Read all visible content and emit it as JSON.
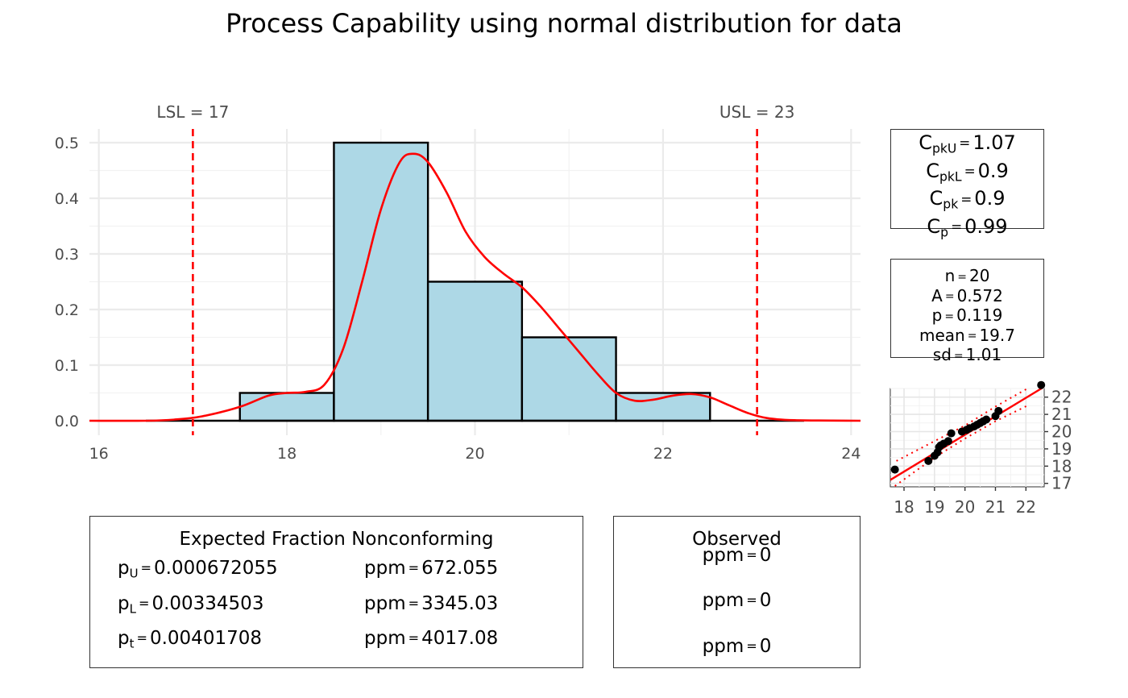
{
  "title": "Process Capability using normal distribution for data",
  "chart_data": [
    {
      "type": "bar",
      "subtype": "histogram-with-density",
      "x_ticks": [
        16,
        18,
        20,
        22,
        24
      ],
      "xlim": [
        15.9,
        24.1
      ],
      "y_ticks": [
        "0.0",
        "0.1",
        "0.2",
        "0.3",
        "0.4",
        "0.5"
      ],
      "ylim": [
        0,
        0.52
      ],
      "bins": [
        {
          "x0": 17.5,
          "x1": 18.5,
          "value": 0.05
        },
        {
          "x0": 18.5,
          "x1": 19.5,
          "value": 0.5
        },
        {
          "x0": 19.5,
          "x1": 20.5,
          "value": 0.25
        },
        {
          "x0": 20.5,
          "x1": 21.5,
          "value": 0.15
        },
        {
          "x0": 21.5,
          "x1": 22.5,
          "value": 0.05
        }
      ],
      "bar_fill": "#add8e6",
      "density_color": "#ff0000",
      "density_curve": [
        [
          15.9,
          0.0
        ],
        [
          16.5,
          0.0
        ],
        [
          16.8,
          0.002
        ],
        [
          17.1,
          0.008
        ],
        [
          17.5,
          0.025
        ],
        [
          17.8,
          0.045
        ],
        [
          18.0,
          0.05
        ],
        [
          18.2,
          0.052
        ],
        [
          18.4,
          0.065
        ],
        [
          18.6,
          0.13
        ],
        [
          18.8,
          0.25
        ],
        [
          19.0,
          0.38
        ],
        [
          19.2,
          0.465
        ],
        [
          19.35,
          0.48
        ],
        [
          19.5,
          0.465
        ],
        [
          19.7,
          0.41
        ],
        [
          19.9,
          0.34
        ],
        [
          20.1,
          0.295
        ],
        [
          20.3,
          0.265
        ],
        [
          20.5,
          0.24
        ],
        [
          20.7,
          0.205
        ],
        [
          20.9,
          0.165
        ],
        [
          21.1,
          0.125
        ],
        [
          21.3,
          0.085
        ],
        [
          21.5,
          0.05
        ],
        [
          21.7,
          0.036
        ],
        [
          21.9,
          0.038
        ],
        [
          22.1,
          0.045
        ],
        [
          22.3,
          0.048
        ],
        [
          22.5,
          0.042
        ],
        [
          22.7,
          0.028
        ],
        [
          22.9,
          0.014
        ],
        [
          23.1,
          0.005
        ],
        [
          23.4,
          0.001
        ],
        [
          24.1,
          0.0
        ]
      ],
      "spec_limits": [
        {
          "label": "LSL = 17",
          "value": 17
        },
        {
          "label": "USL = 23",
          "value": 23
        }
      ],
      "spec_color": "#ff0000"
    },
    {
      "type": "scatter",
      "subtype": "qq-plot",
      "x_ticks": [
        "18",
        "19",
        "20",
        "21",
        "22"
      ],
      "y_ticks": [
        "17",
        "18",
        "19",
        "20",
        "21",
        "22"
      ],
      "xlim": [
        17.55,
        22.6
      ],
      "ylim": [
        16.8,
        22.5
      ],
      "points": [
        [
          17.7,
          17.8
        ],
        [
          18.8,
          18.3
        ],
        [
          19.0,
          18.6
        ],
        [
          19.1,
          18.8
        ],
        [
          19.15,
          19.1
        ],
        [
          19.2,
          19.2
        ],
        [
          19.3,
          19.3
        ],
        [
          19.45,
          19.45
        ],
        [
          19.55,
          19.9
        ],
        [
          19.9,
          20.0
        ],
        [
          20.05,
          20.1
        ],
        [
          20.15,
          20.2
        ],
        [
          20.3,
          20.3
        ],
        [
          20.4,
          20.4
        ],
        [
          20.5,
          20.5
        ],
        [
          20.6,
          20.6
        ],
        [
          20.7,
          20.7
        ],
        [
          21.0,
          20.9
        ],
        [
          21.1,
          21.2
        ],
        [
          22.5,
          22.7
        ]
      ],
      "fit_line": [
        [
          17.55,
          17.2
        ],
        [
          22.6,
          22.6
        ]
      ],
      "band_lower": [
        [
          17.7,
          16.85
        ],
        [
          19.0,
          18.5
        ],
        [
          20.0,
          19.6
        ],
        [
          21.0,
          20.6
        ],
        [
          22.1,
          21.55
        ]
      ],
      "band_upper": [
        [
          17.75,
          18.3
        ],
        [
          19.0,
          19.45
        ],
        [
          20.0,
          20.35
        ],
        [
          21.0,
          21.45
        ],
        [
          22.1,
          22.55
        ]
      ]
    }
  ],
  "capability": {
    "cpku": "1.07",
    "cpkl": "0.9",
    "cpk": "0.9",
    "cp": "0.99"
  },
  "stats": {
    "n": "20",
    "A": "0.572",
    "p": "0.119",
    "mean": "19.7",
    "sd": "1.01"
  },
  "expected": {
    "title": "Expected Fraction Nonconforming",
    "rows": [
      {
        "label": "U",
        "value": "0.000672055",
        "ppm": "672.055"
      },
      {
        "label": "L",
        "value": "0.00334503",
        "ppm": "3345.03"
      },
      {
        "label": "t",
        "value": "0.00401708",
        "ppm": "4017.08"
      }
    ]
  },
  "observed": {
    "title": "Observed",
    "rows": [
      "0",
      "0",
      "0"
    ]
  }
}
